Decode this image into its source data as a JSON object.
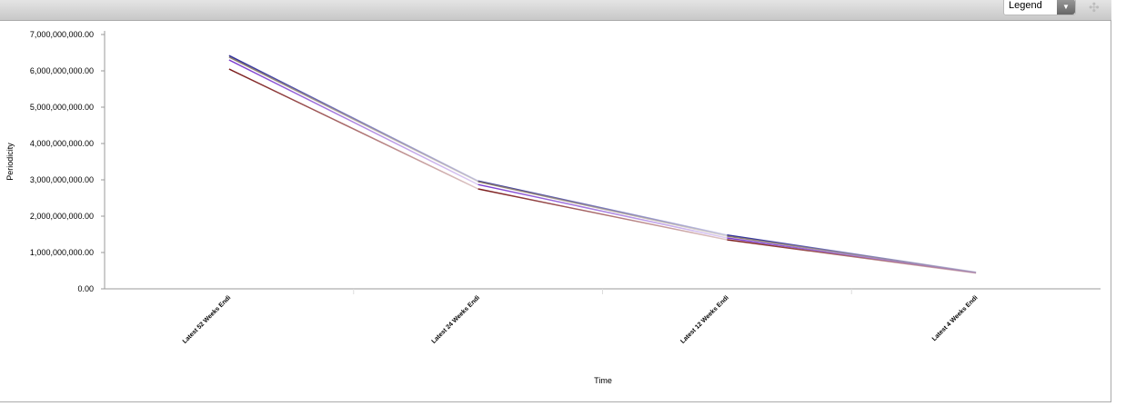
{
  "toolbar": {
    "legend_label": "Legend",
    "dropdown_icon": "caret-down-icon",
    "grip_icon": "move-grip-icon"
  },
  "chart_data": {
    "type": "line",
    "xlabel": "Time",
    "ylabel": "Periodicity",
    "categories": [
      "Latest 52 Weeks Endi",
      "Latest 24 Weeks Endi",
      "Latest 12 Weeks Endi",
      "Latest 4 Weeks Endi"
    ],
    "ylim": [
      0,
      7000000000
    ],
    "yticks": [
      "0.00",
      "1,000,000,000.00",
      "2,000,000,000.00",
      "3,000,000,000.00",
      "4,000,000,000.00",
      "5,000,000,000.00",
      "6,000,000,000.00",
      "7,000,000,000.00"
    ],
    "grid": false,
    "legend": "hidden",
    "series": [
      {
        "color": "#2a2a9a",
        "values": [
          6420000000,
          2970000000,
          1480000000,
          460000000
        ]
      },
      {
        "color": "#8a7a6a",
        "values": [
          6380000000,
          2950000000,
          1450000000,
          450000000
        ]
      },
      {
        "color": "#7a3ad0",
        "values": [
          6300000000,
          2870000000,
          1400000000,
          440000000
        ]
      },
      {
        "color": "#7a1a1a",
        "values": [
          6050000000,
          2750000000,
          1350000000,
          430000000
        ]
      }
    ]
  }
}
